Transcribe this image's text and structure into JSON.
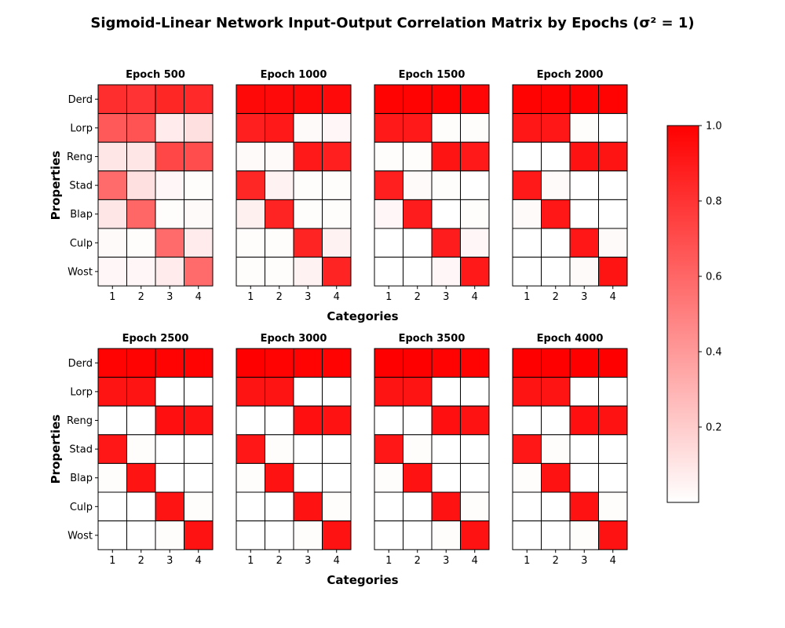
{
  "chart_data": {
    "type": "heatmap",
    "title": "Sigmoid-Linear Network Input-Output Correlation Matrix by Epochs (σ² = 1)",
    "row_labels": [
      "Derd",
      "Lorp",
      "Reng",
      "Stad",
      "Blap",
      "Culp",
      "Wost"
    ],
    "col_labels": [
      "1",
      "2",
      "3",
      "4"
    ],
    "ylabel": "Properties",
    "xlabel": "Categories",
    "colormap": {
      "low": "#ffffff",
      "high": "#ff0000"
    },
    "colorbar": {
      "min": 0.0,
      "max": 1.0,
      "ticks": [
        "0.2",
        "0.4",
        "0.6",
        "0.8",
        "1.0"
      ],
      "tick_values": [
        0.2,
        0.4,
        0.6,
        0.8,
        1.0
      ]
    },
    "panels": [
      {
        "title": "Epoch 500",
        "values": [
          [
            0.82,
            0.8,
            0.85,
            0.84
          ],
          [
            0.65,
            0.68,
            0.08,
            0.12
          ],
          [
            0.1,
            0.1,
            0.72,
            0.7
          ],
          [
            0.58,
            0.12,
            0.03,
            0.01
          ],
          [
            0.1,
            0.6,
            0.01,
            0.02
          ],
          [
            0.02,
            0.01,
            0.58,
            0.08
          ],
          [
            0.03,
            0.03,
            0.08,
            0.58
          ]
        ]
      },
      {
        "title": "Epoch 1000",
        "values": [
          [
            0.97,
            0.96,
            0.97,
            0.96
          ],
          [
            0.88,
            0.9,
            0.02,
            0.03
          ],
          [
            0.02,
            0.02,
            0.9,
            0.88
          ],
          [
            0.85,
            0.05,
            0.01,
            0.01
          ],
          [
            0.06,
            0.86,
            0.01,
            0.01
          ],
          [
            0.01,
            0.01,
            0.86,
            0.05
          ],
          [
            0.01,
            0.01,
            0.05,
            0.86
          ]
        ]
      },
      {
        "title": "Epoch 1500",
        "values": [
          [
            0.99,
            0.99,
            0.99,
            0.98
          ],
          [
            0.9,
            0.9,
            0.01,
            0.01
          ],
          [
            0.01,
            0.01,
            0.92,
            0.9
          ],
          [
            0.88,
            0.02,
            0.01,
            0.0
          ],
          [
            0.03,
            0.89,
            0.0,
            0.01
          ],
          [
            0.0,
            0.0,
            0.89,
            0.03
          ],
          [
            0.0,
            0.0,
            0.03,
            0.9
          ]
        ]
      },
      {
        "title": "Epoch 2000",
        "values": [
          [
            0.99,
            0.99,
            0.99,
            0.99
          ],
          [
            0.91,
            0.91,
            0.01,
            0.0
          ],
          [
            0.0,
            0.0,
            0.93,
            0.92
          ],
          [
            0.9,
            0.02,
            0.0,
            0.0
          ],
          [
            0.02,
            0.91,
            0.0,
            0.0
          ],
          [
            0.0,
            0.0,
            0.91,
            0.02
          ],
          [
            0.0,
            0.0,
            0.02,
            0.92
          ]
        ]
      },
      {
        "title": "Epoch 2500",
        "values": [
          [
            0.99,
            0.99,
            0.99,
            0.99
          ],
          [
            0.92,
            0.92,
            0.0,
            0.0
          ],
          [
            0.0,
            0.0,
            0.94,
            0.93
          ],
          [
            0.91,
            0.01,
            0.0,
            0.0
          ],
          [
            0.01,
            0.92,
            0.0,
            0.0
          ],
          [
            0.0,
            0.0,
            0.92,
            0.01
          ],
          [
            0.0,
            0.0,
            0.01,
            0.93
          ]
        ]
      },
      {
        "title": "Epoch 3000",
        "values": [
          [
            1.0,
            0.99,
            0.99,
            0.99
          ],
          [
            0.92,
            0.92,
            0.0,
            0.0
          ],
          [
            0.0,
            0.0,
            0.94,
            0.93
          ],
          [
            0.91,
            0.01,
            0.0,
            0.0
          ],
          [
            0.01,
            0.93,
            0.0,
            0.0
          ],
          [
            0.0,
            0.0,
            0.93,
            0.01
          ],
          [
            0.0,
            0.0,
            0.01,
            0.93
          ]
        ]
      },
      {
        "title": "Epoch 3500",
        "values": [
          [
            1.0,
            1.0,
            0.99,
            0.99
          ],
          [
            0.92,
            0.92,
            0.0,
            0.0
          ],
          [
            0.0,
            0.0,
            0.94,
            0.93
          ],
          [
            0.91,
            0.01,
            0.0,
            0.0
          ],
          [
            0.01,
            0.93,
            0.0,
            0.0
          ],
          [
            0.0,
            0.0,
            0.93,
            0.01
          ],
          [
            0.0,
            0.0,
            0.01,
            0.93
          ]
        ]
      },
      {
        "title": "Epoch 4000",
        "values": [
          [
            1.0,
            1.0,
            1.0,
            1.0
          ],
          [
            0.92,
            0.92,
            0.0,
            0.0
          ],
          [
            0.0,
            0.0,
            0.94,
            0.93
          ],
          [
            0.91,
            0.01,
            0.0,
            0.0
          ],
          [
            0.01,
            0.93,
            0.0,
            0.0
          ],
          [
            0.0,
            0.0,
            0.93,
            0.01
          ],
          [
            0.0,
            0.0,
            0.01,
            0.93
          ]
        ]
      }
    ]
  }
}
